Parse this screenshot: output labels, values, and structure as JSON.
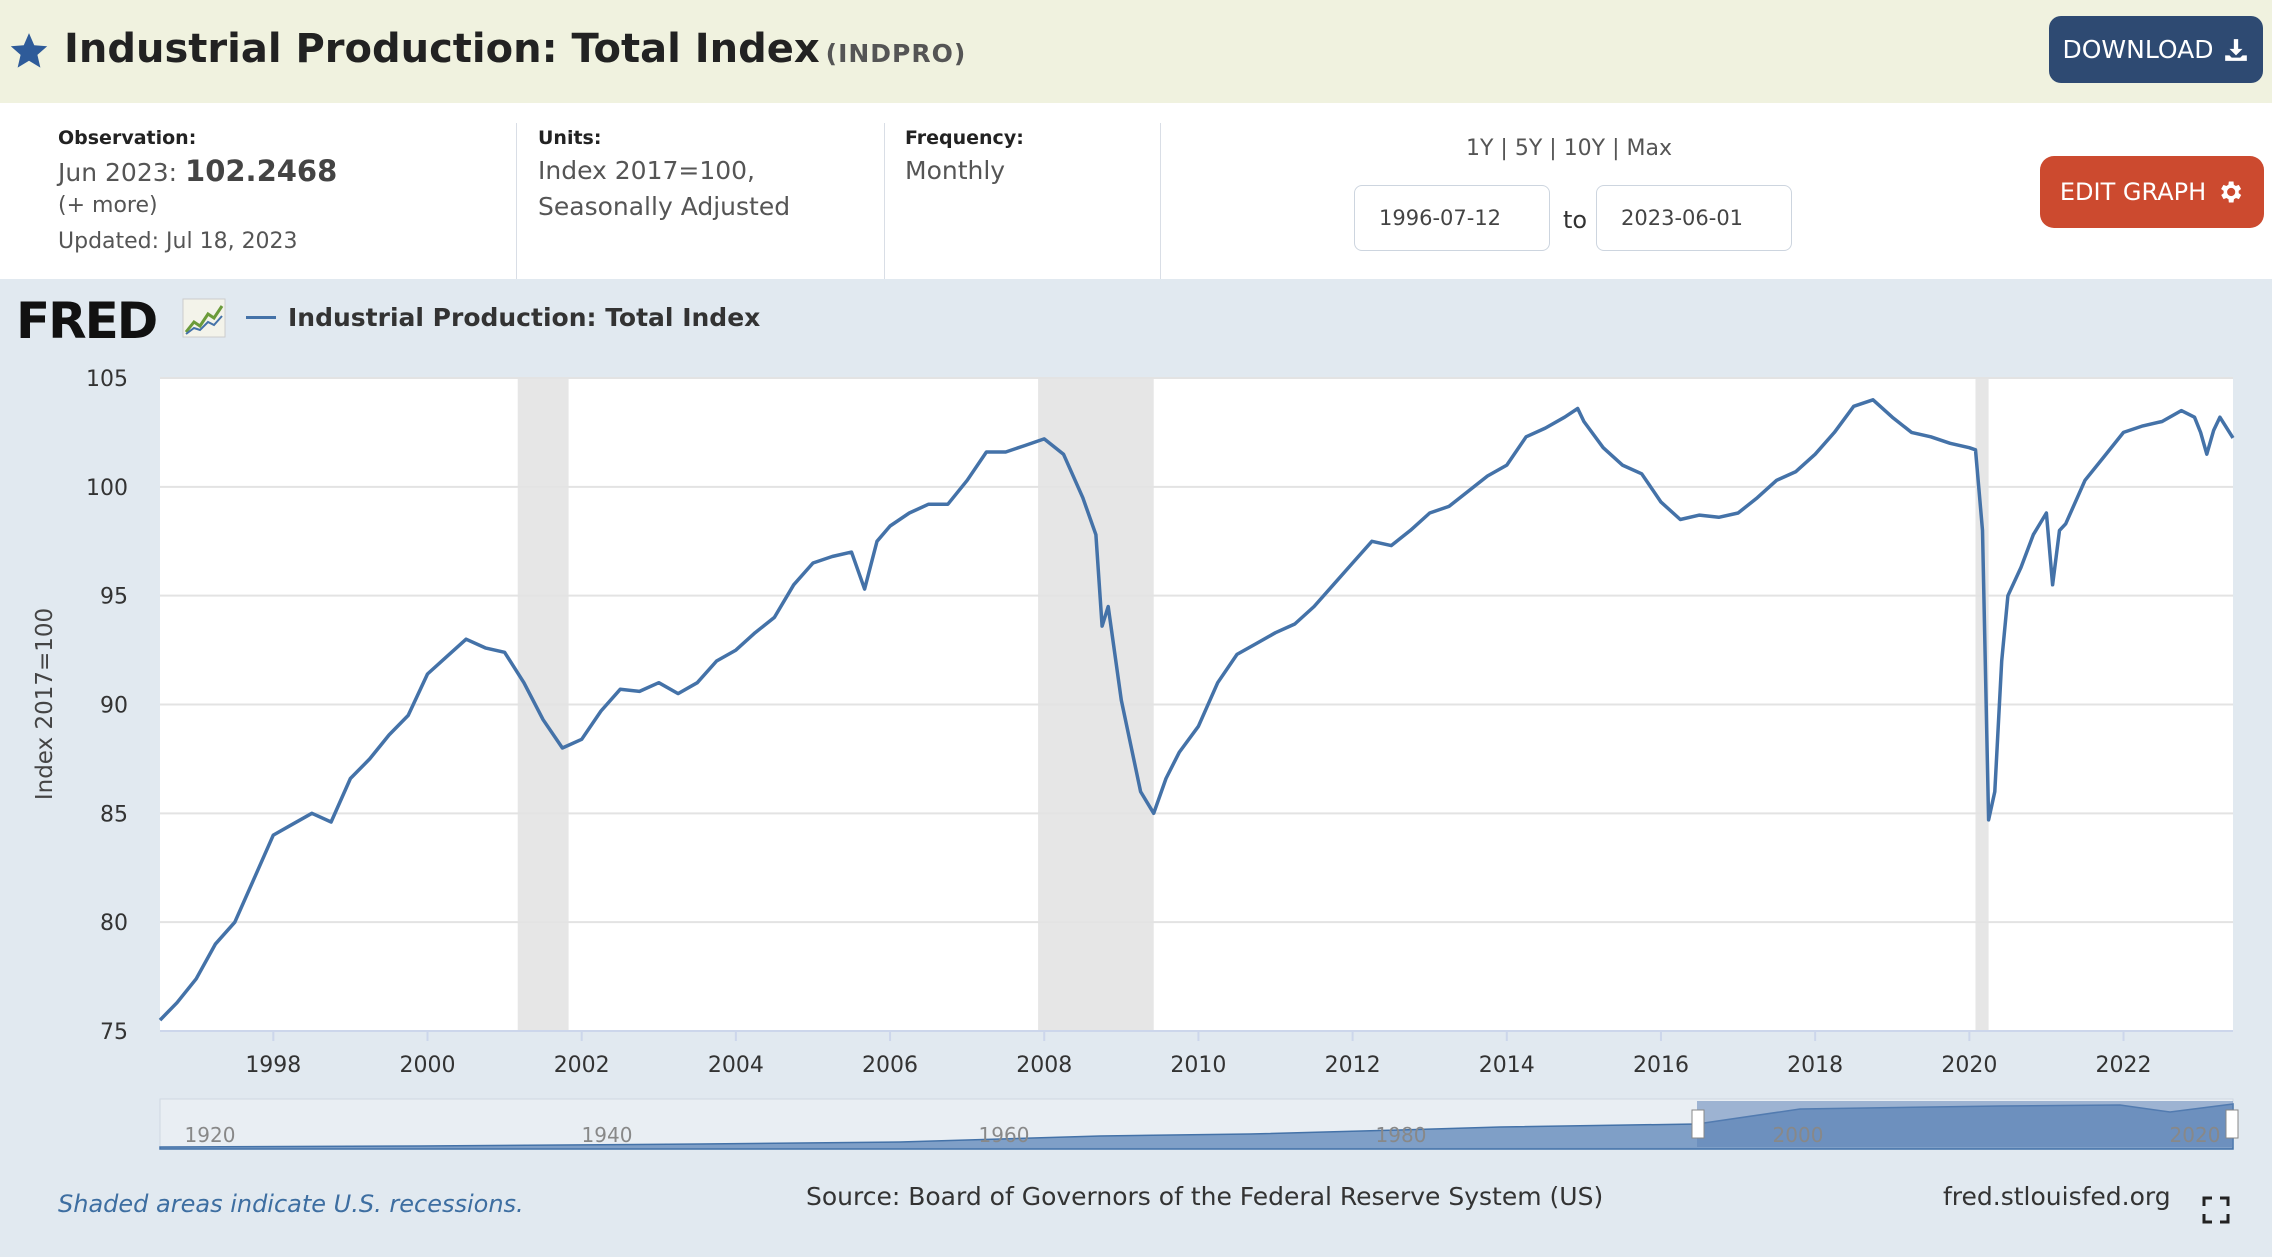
{
  "header": {
    "title": "Industrial Production: Total Index",
    "series_code": "(INDPRO)",
    "download_label": "DOWNLOAD"
  },
  "info": {
    "observation_label": "Observation:",
    "observation_period": "Jun 2023:",
    "observation_value": "102.2468",
    "more_link": "(+ more)",
    "updated": "Updated: Jul 18, 2023",
    "units_label": "Units:",
    "units_line1": "Index 2017=100,",
    "units_line2": "Seasonally Adjusted",
    "frequency_label": "Frequency:",
    "frequency_value": "Monthly"
  },
  "range": {
    "r1y": "1Y",
    "r5y": "5Y",
    "r10y": "10Y",
    "rmax": "Max",
    "start_date": "1996-07-12",
    "to_label": "to",
    "end_date": "2023-06-01",
    "edit_label": "EDIT GRAPH"
  },
  "logo_text": "FRED",
  "footer": {
    "recession_note": "Shaded areas indicate U.S. recessions.",
    "source": "Source: Board of Governors of the Federal Reserve System (US)",
    "site": "fred.stlouisfed.org"
  },
  "colors": {
    "line": "#4472a8",
    "recession": "#e6e6e6",
    "download": "#2e4a72",
    "edit": "#cc4a2f"
  },
  "chart_data": {
    "type": "line",
    "title": "",
    "ylabel": "Index 2017=100",
    "xlabel": "",
    "xlim": [
      1996.53,
      2023.42
    ],
    "ylim": [
      75,
      105
    ],
    "yticks": [
      75,
      80,
      85,
      90,
      95,
      100,
      105
    ],
    "xticks": [
      1998,
      2000,
      2002,
      2004,
      2006,
      2008,
      2010,
      2012,
      2014,
      2016,
      2018,
      2020,
      2022
    ],
    "grid": true,
    "legend": "top-left",
    "series": [
      {
        "name": "Industrial Production: Total Index",
        "x": [
          1996.53,
          1996.75,
          1997.0,
          1997.25,
          1997.5,
          1997.75,
          1998.0,
          1998.25,
          1998.5,
          1998.75,
          1999.0,
          1999.25,
          1999.5,
          1999.75,
          2000.0,
          2000.25,
          2000.5,
          2000.75,
          2001.0,
          2001.25,
          2001.5,
          2001.75,
          2002.0,
          2002.25,
          2002.5,
          2002.75,
          2003.0,
          2003.25,
          2003.5,
          2003.75,
          2004.0,
          2004.25,
          2004.5,
          2004.75,
          2005.0,
          2005.25,
          2005.5,
          2005.67,
          2005.83,
          2006.0,
          2006.25,
          2006.5,
          2006.75,
          2007.0,
          2007.25,
          2007.5,
          2007.75,
          2008.0,
          2008.25,
          2008.5,
          2008.67,
          2008.75,
          2008.83,
          2009.0,
          2009.25,
          2009.42,
          2009.58,
          2009.75,
          2010.0,
          2010.25,
          2010.5,
          2010.75,
          2011.0,
          2011.25,
          2011.5,
          2011.75,
          2012.0,
          2012.25,
          2012.5,
          2012.75,
          2013.0,
          2013.25,
          2013.5,
          2013.75,
          2014.0,
          2014.25,
          2014.5,
          2014.75,
          2014.92,
          2015.0,
          2015.25,
          2015.5,
          2015.75,
          2016.0,
          2016.25,
          2016.5,
          2016.75,
          2017.0,
          2017.25,
          2017.5,
          2017.75,
          2018.0,
          2018.25,
          2018.5,
          2018.75,
          2019.0,
          2019.25,
          2019.5,
          2019.75,
          2020.0,
          2020.08,
          2020.17,
          2020.25,
          2020.33,
          2020.42,
          2020.5,
          2020.67,
          2020.83,
          2021.0,
          2021.08,
          2021.17,
          2021.25,
          2021.5,
          2021.75,
          2022.0,
          2022.25,
          2022.5,
          2022.75,
          2022.92,
          2023.0,
          2023.08,
          2023.17,
          2023.25,
          2023.42
        ],
        "y": [
          75.5,
          76.3,
          77.4,
          79.0,
          80.0,
          82.0,
          84.0,
          84.5,
          85.0,
          84.6,
          86.6,
          87.5,
          88.6,
          89.5,
          91.4,
          92.2,
          93.0,
          92.6,
          92.4,
          91.0,
          89.3,
          88.0,
          88.4,
          89.7,
          90.7,
          90.6,
          91.0,
          90.5,
          91.0,
          92.0,
          92.5,
          93.3,
          94.0,
          95.5,
          96.5,
          96.8,
          97.0,
          95.3,
          97.5,
          98.2,
          98.8,
          99.2,
          99.2,
          100.3,
          101.6,
          101.6,
          101.9,
          102.2,
          101.5,
          99.5,
          97.8,
          93.6,
          94.5,
          90.2,
          86.0,
          85.0,
          86.6,
          87.8,
          89.0,
          91.0,
          92.3,
          92.8,
          93.3,
          93.7,
          94.5,
          95.5,
          96.5,
          97.5,
          97.3,
          98.0,
          98.8,
          99.1,
          99.8,
          100.5,
          101.0,
          102.3,
          102.7,
          103.2,
          103.6,
          103.0,
          101.8,
          101.0,
          100.6,
          99.3,
          98.5,
          98.7,
          98.6,
          98.8,
          99.5,
          100.3,
          100.7,
          101.5,
          102.5,
          103.7,
          104.0,
          103.2,
          102.5,
          102.3,
          102.0,
          101.8,
          101.7,
          98.0,
          84.7,
          86.0,
          92.0,
          95.0,
          96.3,
          97.8,
          98.8,
          95.5,
          98.0,
          98.3,
          100.3,
          101.4,
          102.5,
          102.8,
          103.0,
          103.5,
          103.2,
          102.5,
          101.5,
          102.6,
          103.2,
          102.25
        ]
      }
    ],
    "recessions": [
      [
        2001.17,
        2001.83
      ],
      [
        2007.92,
        2009.42
      ],
      [
        2020.08,
        2020.25
      ]
    ],
    "navigator_labels": [
      "1920",
      "1940",
      "1960",
      "1980",
      "2000",
      "2020"
    ]
  }
}
